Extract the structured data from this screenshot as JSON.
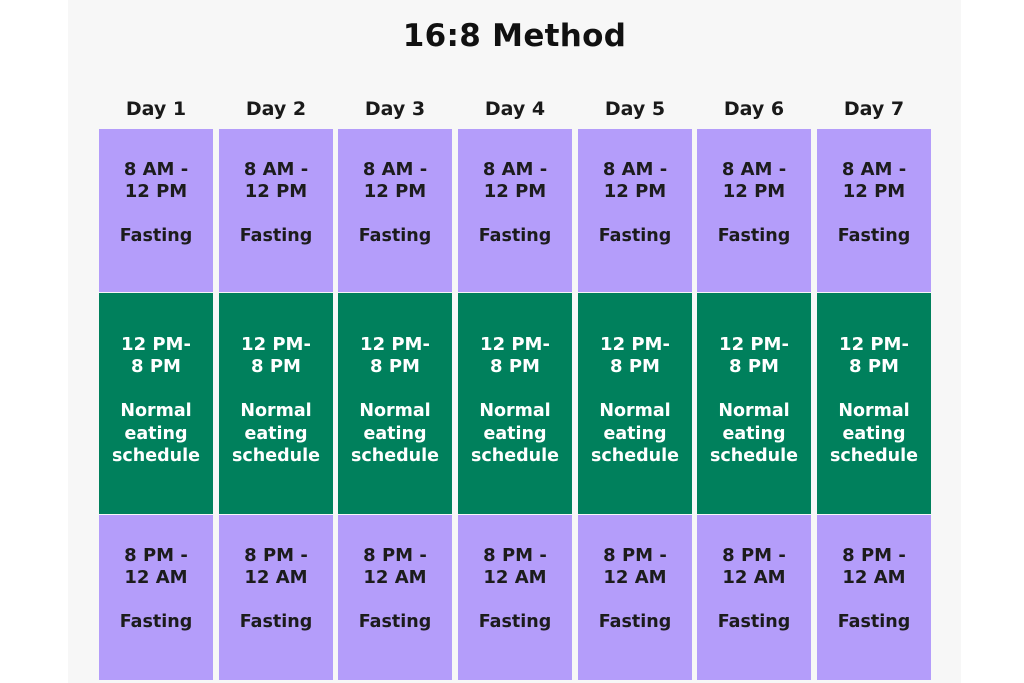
{
  "title": "16:8 Method",
  "colors": {
    "fasting": "#b49dfa",
    "eating": "#00805c",
    "panel": "#f7f7f7"
  },
  "days": [
    {
      "label": "Day 1",
      "blocks": [
        {
          "type": "fasting",
          "time": "8 AM -\n12 PM",
          "desc": "Fasting"
        },
        {
          "type": "eating",
          "time": "12 PM-\n8 PM",
          "desc": "Normal\neating\nschedule"
        },
        {
          "type": "fasting",
          "time": "8 PM -\n12 AM",
          "desc": "Fasting"
        }
      ]
    },
    {
      "label": "Day 2",
      "blocks": [
        {
          "type": "fasting",
          "time": "8 AM -\n12 PM",
          "desc": "Fasting"
        },
        {
          "type": "eating",
          "time": "12 PM-\n8 PM",
          "desc": "Normal\neating\nschedule"
        },
        {
          "type": "fasting",
          "time": "8 PM -\n12 AM",
          "desc": "Fasting"
        }
      ]
    },
    {
      "label": "Day 3",
      "blocks": [
        {
          "type": "fasting",
          "time": "8 AM -\n12 PM",
          "desc": "Fasting"
        },
        {
          "type": "eating",
          "time": "12 PM-\n8 PM",
          "desc": "Normal\neating\nschedule"
        },
        {
          "type": "fasting",
          "time": "8 PM -\n12 AM",
          "desc": "Fasting"
        }
      ]
    },
    {
      "label": "Day 4",
      "blocks": [
        {
          "type": "fasting",
          "time": "8 AM -\n12 PM",
          "desc": "Fasting"
        },
        {
          "type": "eating",
          "time": "12 PM-\n8 PM",
          "desc": "Normal\neating\nschedule"
        },
        {
          "type": "fasting",
          "time": "8 PM -\n12 AM",
          "desc": "Fasting"
        }
      ]
    },
    {
      "label": "Day 5",
      "blocks": [
        {
          "type": "fasting",
          "time": "8 AM -\n12 PM",
          "desc": "Fasting"
        },
        {
          "type": "eating",
          "time": "12 PM-\n8 PM",
          "desc": "Normal\neating\nschedule"
        },
        {
          "type": "fasting",
          "time": "8 PM -\n12 AM",
          "desc": "Fasting"
        }
      ]
    },
    {
      "label": "Day 6",
      "blocks": [
        {
          "type": "fasting",
          "time": "8 AM -\n12 PM",
          "desc": "Fasting"
        },
        {
          "type": "eating",
          "time": "12 PM-\n8 PM",
          "desc": "Normal\neating\nschedule"
        },
        {
          "type": "fasting",
          "time": "8 PM -\n12 AM",
          "desc": "Fasting"
        }
      ]
    },
    {
      "label": "Day 7",
      "blocks": [
        {
          "type": "fasting",
          "time": "8 AM -\n12 PM",
          "desc": "Fasting"
        },
        {
          "type": "eating",
          "time": "12 PM-\n8 PM",
          "desc": "Normal\neating\nschedule"
        },
        {
          "type": "fasting",
          "time": "8 PM -\n12 AM",
          "desc": "Fasting"
        }
      ]
    }
  ]
}
